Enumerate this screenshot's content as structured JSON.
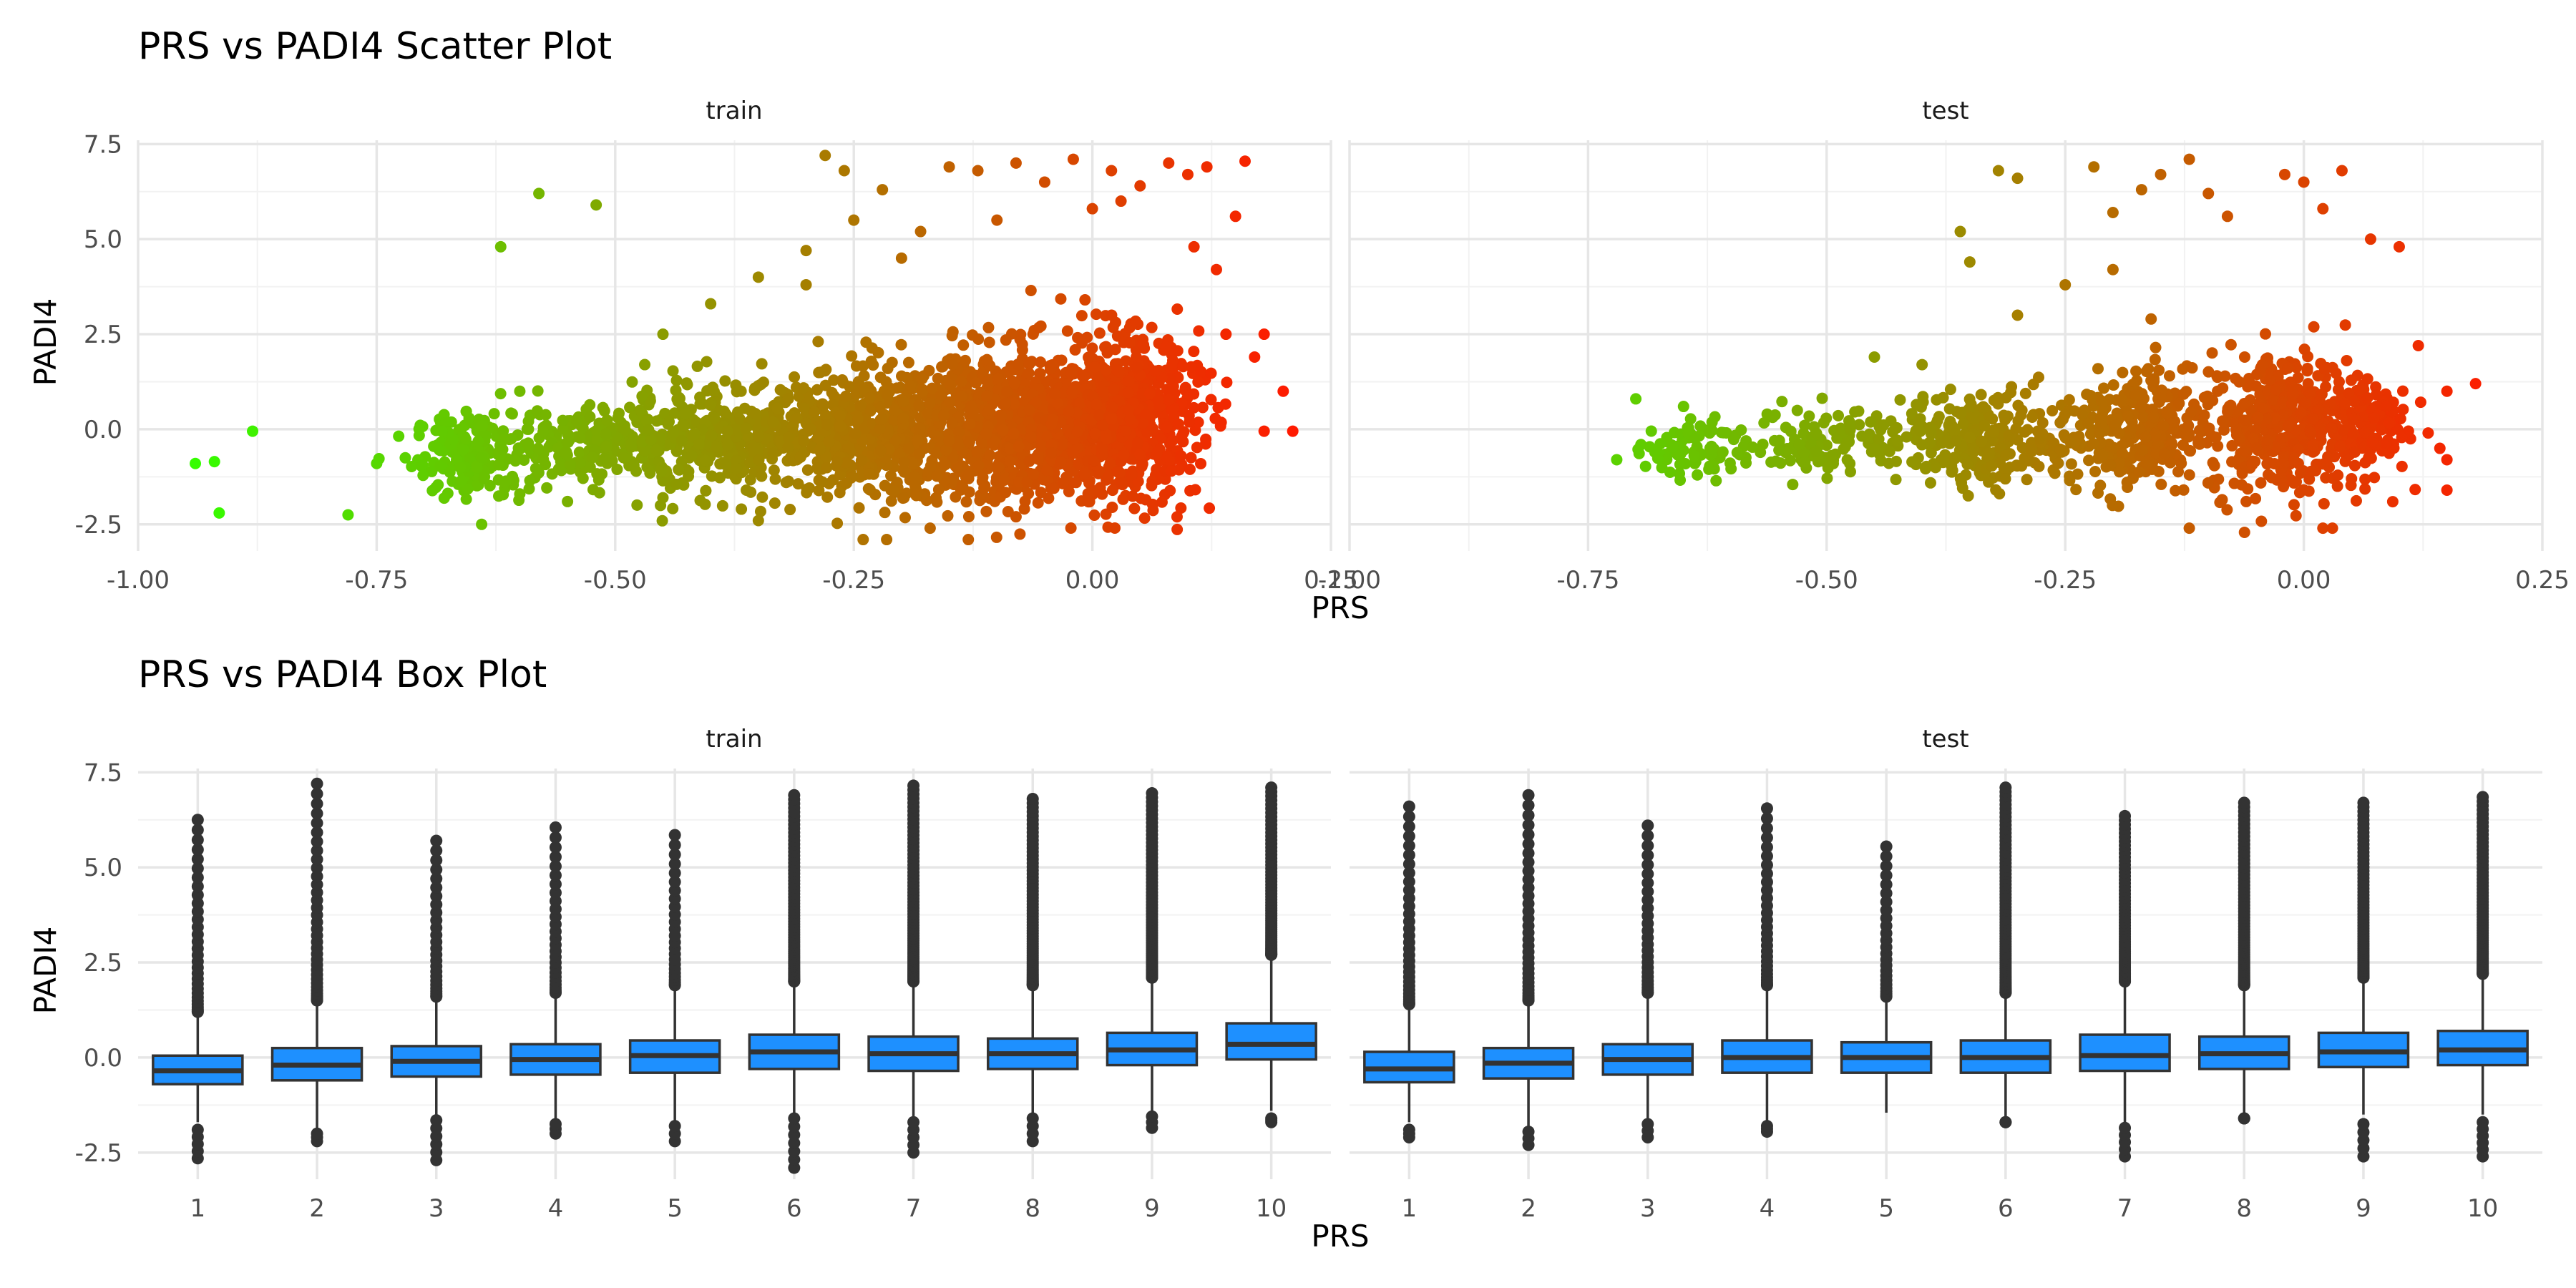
{
  "chart_data": [
    {
      "type": "scatter",
      "title": "PRS vs PADI4 Scatter Plot",
      "xlabel": "PRS",
      "ylabel": "PADI4",
      "facets": [
        "train",
        "test"
      ],
      "xlim": [
        -1.0,
        0.25
      ],
      "ylim": [
        -3.2,
        7.6
      ],
      "x_ticks": [
        "-1.00",
        "-0.75",
        "-0.50",
        "-0.25",
        "0.00",
        "0.25"
      ],
      "y_ticks": [
        "-2.5",
        "0.0",
        "2.5",
        "5.0",
        "7.5"
      ],
      "grid": true,
      "color_scale": {
        "low": "#33ff00",
        "high": "#ff1a00",
        "mapped_to": "PRS"
      },
      "panels": {
        "train": {
          "points": [
            [
              -0.94,
              -0.9
            ],
            [
              -0.92,
              -0.85
            ],
            [
              -0.915,
              -2.2
            ],
            [
              -0.88,
              -0.05
            ],
            [
              -0.78,
              -2.25
            ],
            [
              -0.75,
              -0.9
            ],
            [
              -0.72,
              -0.75
            ],
            [
              -0.62,
              4.8
            ],
            [
              -0.58,
              6.2
            ],
            [
              -0.52,
              5.9
            ],
            [
              -0.6,
              1.0
            ],
            [
              -0.64,
              -2.5
            ],
            [
              -0.6,
              -1.7
            ],
            [
              -0.45,
              2.5
            ],
            [
              -0.4,
              3.3
            ],
            [
              -0.35,
              4.0
            ],
            [
              -0.3,
              4.7
            ],
            [
              -0.28,
              7.2
            ],
            [
              -0.26,
              6.8
            ],
            [
              -0.25,
              5.5
            ],
            [
              -0.22,
              6.3
            ],
            [
              -0.18,
              5.2
            ],
            [
              -0.15,
              6.9
            ],
            [
              -0.12,
              6.8
            ],
            [
              -0.08,
              7.0
            ],
            [
              -0.05,
              6.5
            ],
            [
              -0.02,
              7.1
            ],
            [
              0.02,
              6.8
            ],
            [
              0.05,
              6.4
            ],
            [
              0.08,
              7.0
            ],
            [
              0.1,
              6.7
            ],
            [
              0.12,
              6.9
            ],
            [
              0.15,
              5.6
            ],
            [
              0.16,
              7.05
            ],
            [
              0.13,
              4.2
            ],
            [
              0.14,
              2.5
            ],
            [
              0.18,
              2.5
            ],
            [
              0.17,
              1.9
            ],
            [
              0.2,
              1.0
            ],
            [
              0.21,
              -0.05
            ],
            [
              0.18,
              -0.05
            ],
            [
              -0.17,
              -2.6
            ],
            [
              -0.13,
              -2.9
            ],
            [
              -0.08,
              -2.3
            ],
            [
              -0.35,
              -2.4
            ],
            [
              -0.45,
              -1.8
            ],
            [
              -0.55,
              -1.9
            ],
            [
              -0.3,
              3.8
            ],
            [
              -0.2,
              4.5
            ],
            [
              0.0,
              5.8
            ],
            [
              0.03,
              6.0
            ],
            [
              -0.1,
              5.5
            ]
          ],
          "clouds": [
            {
              "cx": -0.65,
              "cy": -0.7,
              "sx": 0.03,
              "sy": 0.55,
              "n": 180
            },
            {
              "cx": -0.52,
              "cy": -0.35,
              "sx": 0.05,
              "sy": 0.5,
              "n": 220
            },
            {
              "cx": -0.38,
              "cy": -0.3,
              "sx": 0.06,
              "sy": 0.7,
              "n": 350
            },
            {
              "cx": -0.22,
              "cy": -0.1,
              "sx": 0.06,
              "sy": 0.85,
              "n": 550
            },
            {
              "cx": -0.08,
              "cy": 0.1,
              "sx": 0.06,
              "sy": 1.0,
              "n": 750
            },
            {
              "cx": 0.03,
              "cy": 0.3,
              "sx": 0.04,
              "sy": 1.05,
              "n": 650
            }
          ]
        },
        "test": {
          "points": [
            [
              -0.7,
              0.8
            ],
            [
              -0.72,
              -0.8
            ],
            [
              -0.68,
              -0.6
            ],
            [
              -0.65,
              0.6
            ],
            [
              -0.55,
              -0.55
            ],
            [
              -0.45,
              1.9
            ],
            [
              -0.4,
              1.7
            ],
            [
              -0.35,
              4.4
            ],
            [
              -0.36,
              5.2
            ],
            [
              -0.32,
              6.8
            ],
            [
              -0.3,
              6.6
            ],
            [
              -0.22,
              6.9
            ],
            [
              -0.2,
              5.7
            ],
            [
              -0.17,
              6.3
            ],
            [
              -0.15,
              6.7
            ],
            [
              -0.12,
              7.1
            ],
            [
              -0.1,
              6.2
            ],
            [
              -0.08,
              5.6
            ],
            [
              -0.02,
              6.7
            ],
            [
              0.0,
              6.5
            ],
            [
              0.02,
              5.8
            ],
            [
              0.04,
              6.8
            ],
            [
              0.07,
              5.0
            ],
            [
              0.1,
              4.8
            ],
            [
              0.12,
              2.2
            ],
            [
              0.15,
              1.0
            ],
            [
              0.18,
              1.2
            ],
            [
              0.15,
              -0.8
            ],
            [
              0.15,
              -1.6
            ],
            [
              0.05,
              -1.3
            ],
            [
              0.02,
              -2.6
            ],
            [
              0.03,
              -2.6
            ],
            [
              -0.12,
              -2.6
            ],
            [
              -0.2,
              4.2
            ],
            [
              -0.25,
              3.8
            ],
            [
              -0.3,
              3.0
            ],
            [
              -0.16,
              2.9
            ]
          ],
          "clouds": [
            {
              "cx": -0.64,
              "cy": -0.5,
              "sx": 0.025,
              "sy": 0.4,
              "n": 80
            },
            {
              "cx": -0.5,
              "cy": -0.3,
              "sx": 0.04,
              "sy": 0.45,
              "n": 120
            },
            {
              "cx": -0.34,
              "cy": -0.3,
              "sx": 0.04,
              "sy": 0.6,
              "n": 240
            },
            {
              "cx": -0.18,
              "cy": -0.1,
              "sx": 0.04,
              "sy": 0.8,
              "n": 320
            },
            {
              "cx": -0.02,
              "cy": 0.15,
              "sx": 0.04,
              "sy": 0.95,
              "n": 380
            },
            {
              "cx": 0.06,
              "cy": 0.2,
              "sx": 0.025,
              "sy": 0.7,
              "n": 120
            }
          ]
        }
      }
    },
    {
      "type": "box",
      "title": "PRS vs PADI4 Box Plot",
      "xlabel": "PRS",
      "ylabel": "PADI4",
      "facets": [
        "train",
        "test"
      ],
      "categories": [
        "1",
        "2",
        "3",
        "4",
        "5",
        "6",
        "7",
        "8",
        "9",
        "10"
      ],
      "ylim": [
        -3.2,
        7.6
      ],
      "y_ticks": [
        "-2.5",
        "0.0",
        "2.5",
        "5.0",
        "7.5"
      ],
      "box_fill": "#1e90ff",
      "panels": {
        "train": [
          {
            "q1": -0.7,
            "med": -0.35,
            "q3": 0.05,
            "lo": -1.7,
            "hi": 1.1,
            "out_hi": [
              1.2,
              6.25
            ],
            "out_lo": [
              -2.65,
              -1.9
            ]
          },
          {
            "q1": -0.6,
            "med": -0.2,
            "q3": 0.25,
            "lo": -1.9,
            "hi": 1.4,
            "out_hi": [
              1.5,
              7.2
            ],
            "out_lo": [
              -2.2,
              -2.0
            ]
          },
          {
            "q1": -0.5,
            "med": -0.1,
            "q3": 0.3,
            "lo": -1.5,
            "hi": 1.5,
            "out_hi": [
              1.6,
              5.7
            ],
            "out_lo": [
              -2.7,
              -1.65
            ]
          },
          {
            "q1": -0.45,
            "med": -0.05,
            "q3": 0.35,
            "lo": -1.7,
            "hi": 1.6,
            "out_hi": [
              1.7,
              6.05
            ],
            "out_lo": [
              -2.0,
              -1.75
            ]
          },
          {
            "q1": -0.4,
            "med": 0.05,
            "q3": 0.45,
            "lo": -1.7,
            "hi": 1.8,
            "out_hi": [
              1.9,
              5.85
            ],
            "out_lo": [
              -2.2,
              -1.8
            ]
          },
          {
            "q1": -0.3,
            "med": 0.15,
            "q3": 0.6,
            "lo": -1.55,
            "hi": 1.9,
            "out_hi": [
              2.0,
              6.9
            ],
            "out_lo": [
              -2.9,
              -1.6
            ]
          },
          {
            "q1": -0.35,
            "med": 0.1,
            "q3": 0.55,
            "lo": -1.6,
            "hi": 1.9,
            "out_hi": [
              2.0,
              7.15
            ],
            "out_lo": [
              -2.5,
              -1.7
            ]
          },
          {
            "q1": -0.3,
            "med": 0.1,
            "q3": 0.5,
            "lo": -1.5,
            "hi": 1.8,
            "out_hi": [
              1.9,
              6.8
            ],
            "out_lo": [
              -2.2,
              -1.6
            ]
          },
          {
            "q1": -0.2,
            "med": 0.2,
            "q3": 0.65,
            "lo": -1.5,
            "hi": 2.0,
            "out_hi": [
              2.1,
              6.95
            ],
            "out_lo": [
              -1.85,
              -1.55
            ]
          },
          {
            "q1": -0.05,
            "med": 0.35,
            "q3": 0.9,
            "lo": -1.4,
            "hi": 2.6,
            "out_hi": [
              2.7,
              7.1
            ],
            "out_lo": [
              -1.7,
              -1.6
            ]
          }
        ],
        "test": [
          {
            "q1": -0.65,
            "med": -0.3,
            "q3": 0.15,
            "lo": -1.7,
            "hi": 1.3,
            "out_hi": [
              1.4,
              6.6
            ],
            "out_lo": [
              -2.1,
              -1.9
            ]
          },
          {
            "q1": -0.55,
            "med": -0.15,
            "q3": 0.25,
            "lo": -1.8,
            "hi": 1.4,
            "out_hi": [
              1.5,
              6.9
            ],
            "out_lo": [
              -2.3,
              -1.95
            ]
          },
          {
            "q1": -0.45,
            "med": -0.05,
            "q3": 0.35,
            "lo": -1.6,
            "hi": 1.6,
            "out_hi": [
              1.7,
              6.1
            ],
            "out_lo": [
              -2.1,
              -1.75
            ]
          },
          {
            "q1": -0.4,
            "med": 0.0,
            "q3": 0.45,
            "lo": -1.7,
            "hi": 1.8,
            "out_hi": [
              1.9,
              6.55
            ],
            "out_lo": [
              -1.95,
              -1.8
            ]
          },
          {
            "q1": -0.4,
            "med": 0.0,
            "q3": 0.4,
            "lo": -1.45,
            "hi": 1.5,
            "out_hi": [
              1.6,
              5.55
            ],
            "out_lo": [],
            "lo_end": -1.45
          },
          {
            "q1": -0.4,
            "med": 0.0,
            "q3": 0.45,
            "lo": -1.6,
            "hi": 1.6,
            "out_hi": [
              1.7,
              7.1
            ],
            "out_lo": [
              -1.7,
              -1.7
            ]
          },
          {
            "q1": -0.35,
            "med": 0.05,
            "q3": 0.6,
            "lo": -1.7,
            "hi": 1.9,
            "out_hi": [
              2.0,
              6.35
            ],
            "out_lo": [
              -2.6,
              -1.85
            ]
          },
          {
            "q1": -0.3,
            "med": 0.1,
            "q3": 0.55,
            "lo": -1.5,
            "hi": 1.8,
            "out_hi": [
              1.9,
              6.7
            ],
            "out_lo": [
              -1.6,
              -1.6
            ]
          },
          {
            "q1": -0.25,
            "med": 0.15,
            "q3": 0.65,
            "lo": -1.5,
            "hi": 2.0,
            "out_hi": [
              2.1,
              6.7
            ],
            "out_lo": [
              -2.6,
              -1.75
            ]
          },
          {
            "q1": -0.2,
            "med": 0.2,
            "q3": 0.7,
            "lo": -1.5,
            "hi": 2.1,
            "out_hi": [
              2.2,
              6.85
            ],
            "out_lo": [
              -2.6,
              -1.7
            ]
          }
        ]
      }
    }
  ]
}
